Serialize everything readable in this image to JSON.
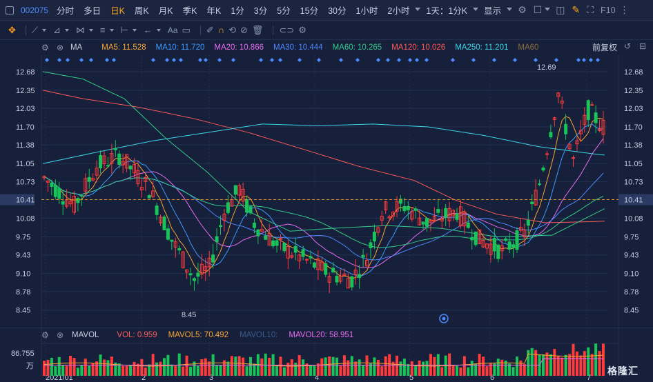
{
  "toolbar": {
    "stock_code": "002075",
    "timeframes": [
      "分时",
      "多日",
      "日K",
      "周K",
      "月K",
      "季K",
      "年K",
      "1分",
      "3分",
      "5分",
      "15分",
      "30分",
      "1小时",
      "2小时"
    ],
    "active_timeframe": "日K",
    "period_select": "1天：1分K",
    "display_label": "显示",
    "f10_label": "F10"
  },
  "drawing_tools": {
    "text_tool_label": "Aa"
  },
  "ma_legend": {
    "label": "MA",
    "items": [
      {
        "text": "MA5: 11.528",
        "color": "#f7a531"
      },
      {
        "text": "MA10: 11.720",
        "color": "#3d9bff"
      },
      {
        "text": "MA20: 10.866",
        "color": "#e86bf0"
      },
      {
        "text": "MA30: 10.444",
        "color": "#4f88ff"
      },
      {
        "text": "MA60: 10.265",
        "color": "#35c98b"
      },
      {
        "text": "MA120: 10.026",
        "color": "#ff5a5a"
      },
      {
        "text": "MA250: 11.201",
        "color": "#3fd6e8"
      },
      {
        "text": "MA60",
        "color": "#8a6e3a"
      }
    ],
    "fuquan": "前复权"
  },
  "price_axis": {
    "ticks": [
      "12.68",
      "12.35",
      "12.03",
      "11.70",
      "11.38",
      "11.05",
      "10.73",
      "10.41",
      "10.08",
      "9.75",
      "9.43",
      "9.10",
      "8.78",
      "8.45"
    ],
    "current": "10.41",
    "high_label": "12.69",
    "low_label": "8.45"
  },
  "time_axis": {
    "labels": [
      "2021/01",
      "2",
      "3",
      "4",
      "5",
      "6",
      "7"
    ]
  },
  "vol_legend": {
    "label": "MAVOL",
    "items": [
      {
        "text": "VOL: 0.959",
        "color": "#ff5a5a"
      },
      {
        "text": "MAVOL5: 70.492",
        "color": "#f7a531"
      },
      {
        "text": "MAVOL10:",
        "color": "#3b5c8c"
      },
      {
        "text": "MAVOL20: 58.951",
        "color": "#e86bf0"
      }
    ],
    "axis_value": "86.755",
    "axis_unit": "万"
  },
  "colors": {
    "up": "#ff3b3b",
    "down": "#19c35a",
    "background": "#16203a",
    "grid": "#223052",
    "dashed_current": "#d98b2b"
  },
  "watermark": "格隆汇"
}
